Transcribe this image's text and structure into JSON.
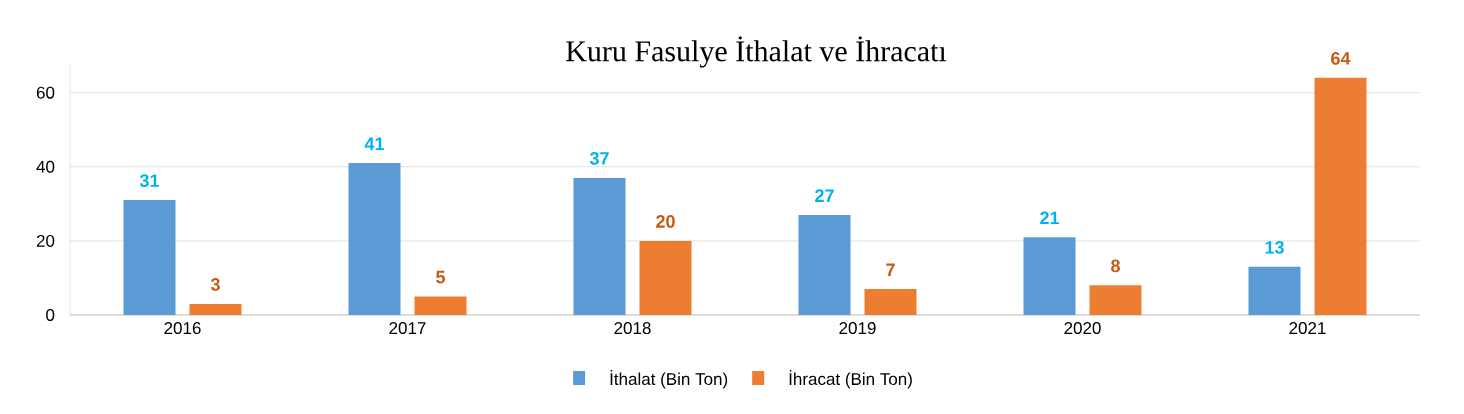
{
  "chart_data": {
    "type": "bar",
    "title": "Kuru Fasulye İthalat ve İhracatı",
    "categories": [
      "2016",
      "2017",
      "2018",
      "2019",
      "2020",
      "2021"
    ],
    "series": [
      {
        "name": "İthalat (Bin Ton)",
        "color": "#5b9bd5",
        "values": [
          31,
          41,
          37,
          27,
          21,
          13
        ]
      },
      {
        "name": "İhracat (Bin Ton)",
        "color": "#ed7d31",
        "values": [
          3,
          5,
          20,
          7,
          8,
          64
        ]
      }
    ],
    "ylim": [
      0,
      68
    ],
    "yticks": [
      0,
      20,
      40,
      60
    ],
    "grid": "y",
    "legend": "bottom",
    "data_labels": true
  }
}
